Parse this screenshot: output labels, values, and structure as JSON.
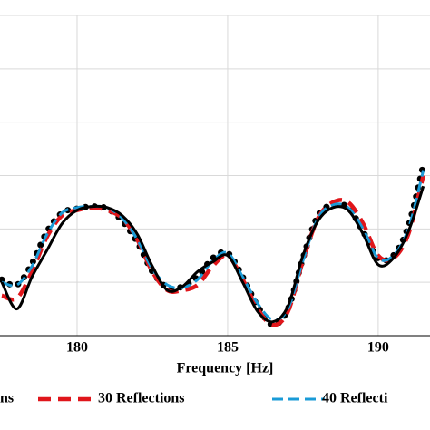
{
  "chart_data": {
    "type": "line",
    "xlabel": "Frequency [Hz]",
    "x": [
      177.5,
      178,
      178.5,
      179,
      179.5,
      180,
      180.5,
      181,
      181.5,
      182,
      182.5,
      183,
      183.5,
      184,
      184.5,
      185,
      185.5,
      186,
      186.5,
      187,
      187.5,
      188,
      188.5,
      189,
      189.5,
      190,
      190.5,
      191,
      191.5
    ],
    "xlim": [
      177.44,
      191.72
    ],
    "xticks": [
      180,
      185,
      190
    ],
    "ylim": [
      0,
      6
    ],
    "ygrid": [
      0,
      1,
      2,
      3,
      4,
      5,
      6
    ],
    "grid": true,
    "series": [
      {
        "name": "ns",
        "color": "#000000",
        "style": "solid",
        "values": [
          1.0,
          0.5,
          1.1,
          1.6,
          2.1,
          2.35,
          2.42,
          2.4,
          2.25,
          1.9,
          1.3,
          0.85,
          0.92,
          1.2,
          1.38,
          1.5,
          1.0,
          0.45,
          0.26,
          0.55,
          1.5,
          2.15,
          2.4,
          2.35,
          1.9,
          1.33,
          1.45,
          1.95,
          2.8
        ]
      },
      {
        "name": "30 Reflections",
        "color": "#e0161b",
        "style": "dashed",
        "values": [
          0.75,
          0.7,
          1.2,
          1.85,
          2.25,
          2.35,
          2.4,
          2.35,
          2.2,
          1.8,
          1.2,
          0.85,
          0.85,
          0.95,
          1.3,
          1.5,
          1.05,
          0.5,
          0.2,
          0.45,
          1.4,
          2.2,
          2.5,
          2.5,
          2.1,
          1.5,
          1.45,
          1.9,
          3.0
        ]
      },
      {
        "name": "40 Reflecti",
        "color": "#1a9bd7",
        "style": "dashed-thin",
        "values": [
          1.0,
          0.95,
          1.3,
          1.9,
          2.3,
          2.4,
          2.42,
          2.4,
          2.2,
          1.8,
          1.25,
          0.95,
          0.9,
          1.05,
          1.4,
          1.55,
          1.1,
          0.6,
          0.3,
          0.5,
          1.4,
          2.2,
          2.45,
          2.4,
          2.0,
          1.45,
          1.5,
          2.0,
          3.1
        ]
      },
      {
        "color": "#000000",
        "style": "dotted",
        "values": [
          1.05,
          0.95,
          1.35,
          1.95,
          2.3,
          2.38,
          2.42,
          2.38,
          2.15,
          1.75,
          1.2,
          0.9,
          0.92,
          1.1,
          1.45,
          1.55,
          1.1,
          0.55,
          0.2,
          0.5,
          1.45,
          2.25,
          2.45,
          2.4,
          1.95,
          1.45,
          1.5,
          2.05,
          3.2
        ]
      }
    ]
  }
}
